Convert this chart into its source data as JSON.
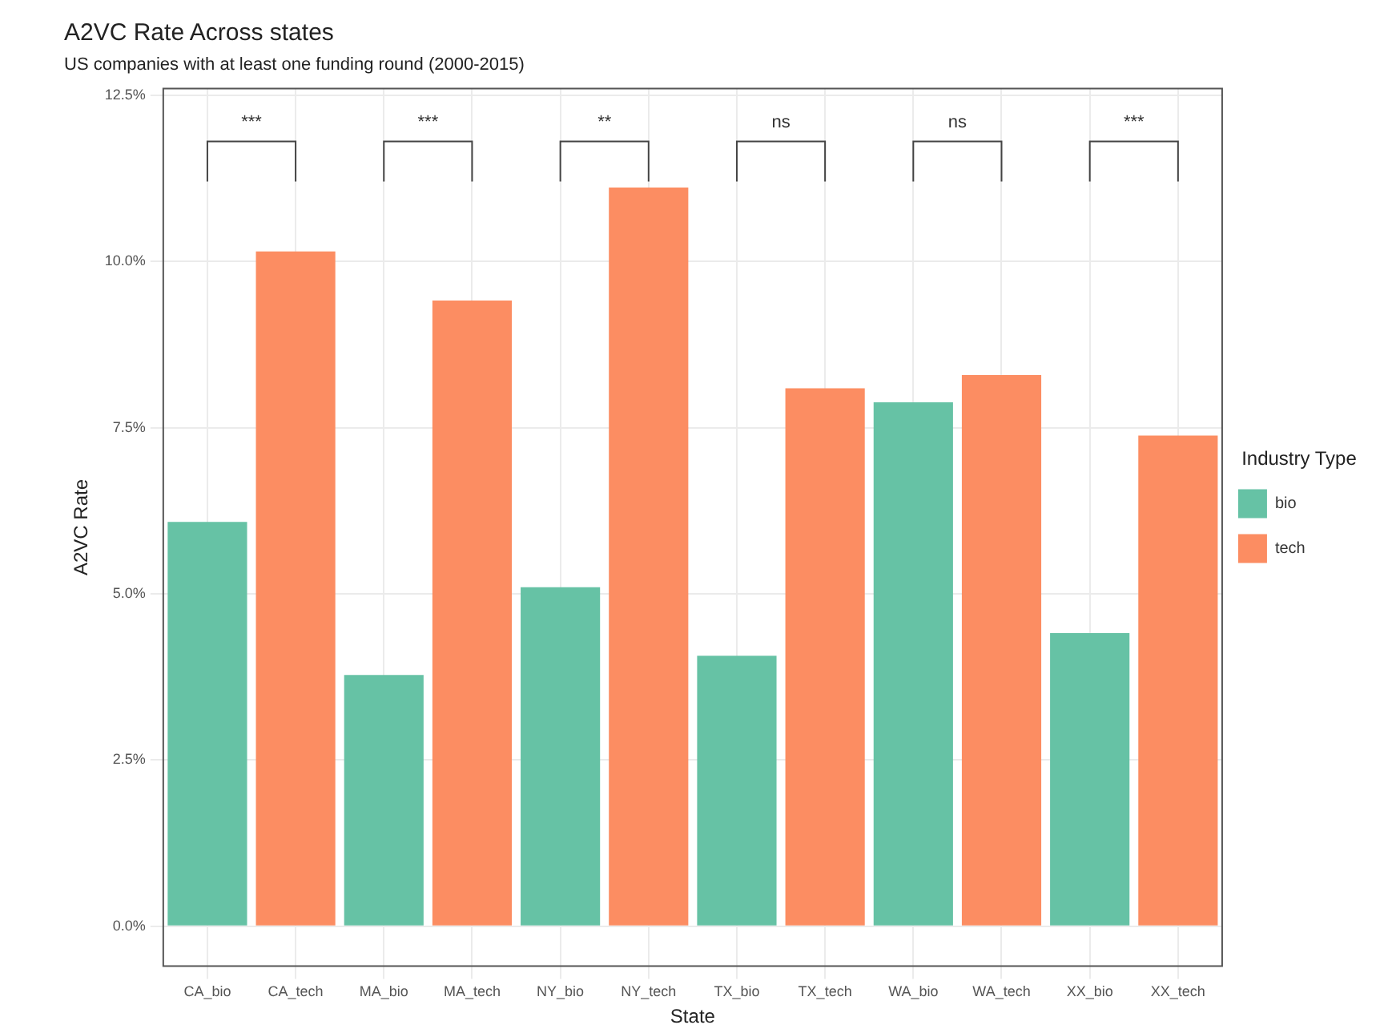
{
  "chart_data": {
    "type": "bar",
    "title": "A2VC Rate Across states",
    "subtitle": "US companies with at least one funding round (2000-2015)",
    "xlabel": "State",
    "ylabel": "A2VC Rate",
    "legend_title": "Industry Type",
    "categories": [
      "CA_bio",
      "CA_tech",
      "MA_bio",
      "MA_tech",
      "NY_bio",
      "NY_tech",
      "TX_bio",
      "TX_tech",
      "WA_bio",
      "WA_tech",
      "XX_bio",
      "XX_tech"
    ],
    "series": [
      {
        "name": "bio",
        "color": "#66c2a5",
        "values": [
          6.08,
          null,
          3.78,
          null,
          5.1,
          null,
          4.07,
          null,
          7.88,
          null,
          4.41,
          null
        ]
      },
      {
        "name": "tech",
        "color": "#fc8d62",
        "values": [
          null,
          10.15,
          null,
          9.41,
          null,
          11.11,
          null,
          8.09,
          null,
          8.29,
          null,
          7.38
        ]
      }
    ],
    "ylim": [
      -0.6,
      12.6
    ],
    "yticks": [
      {
        "value": 0,
        "label": "0.0%"
      },
      {
        "value": 2.5,
        "label": "2.5%"
      },
      {
        "value": 5,
        "label": "5.0%"
      },
      {
        "value": 7.5,
        "label": "7.5%"
      },
      {
        "value": 10,
        "label": "10.0%"
      },
      {
        "value": 12.5,
        "label": "12.5%"
      }
    ],
    "annotations": [
      "***",
      "***",
      "**",
      "ns",
      "ns",
      "***"
    ],
    "grid": true,
    "legend": "right"
  }
}
